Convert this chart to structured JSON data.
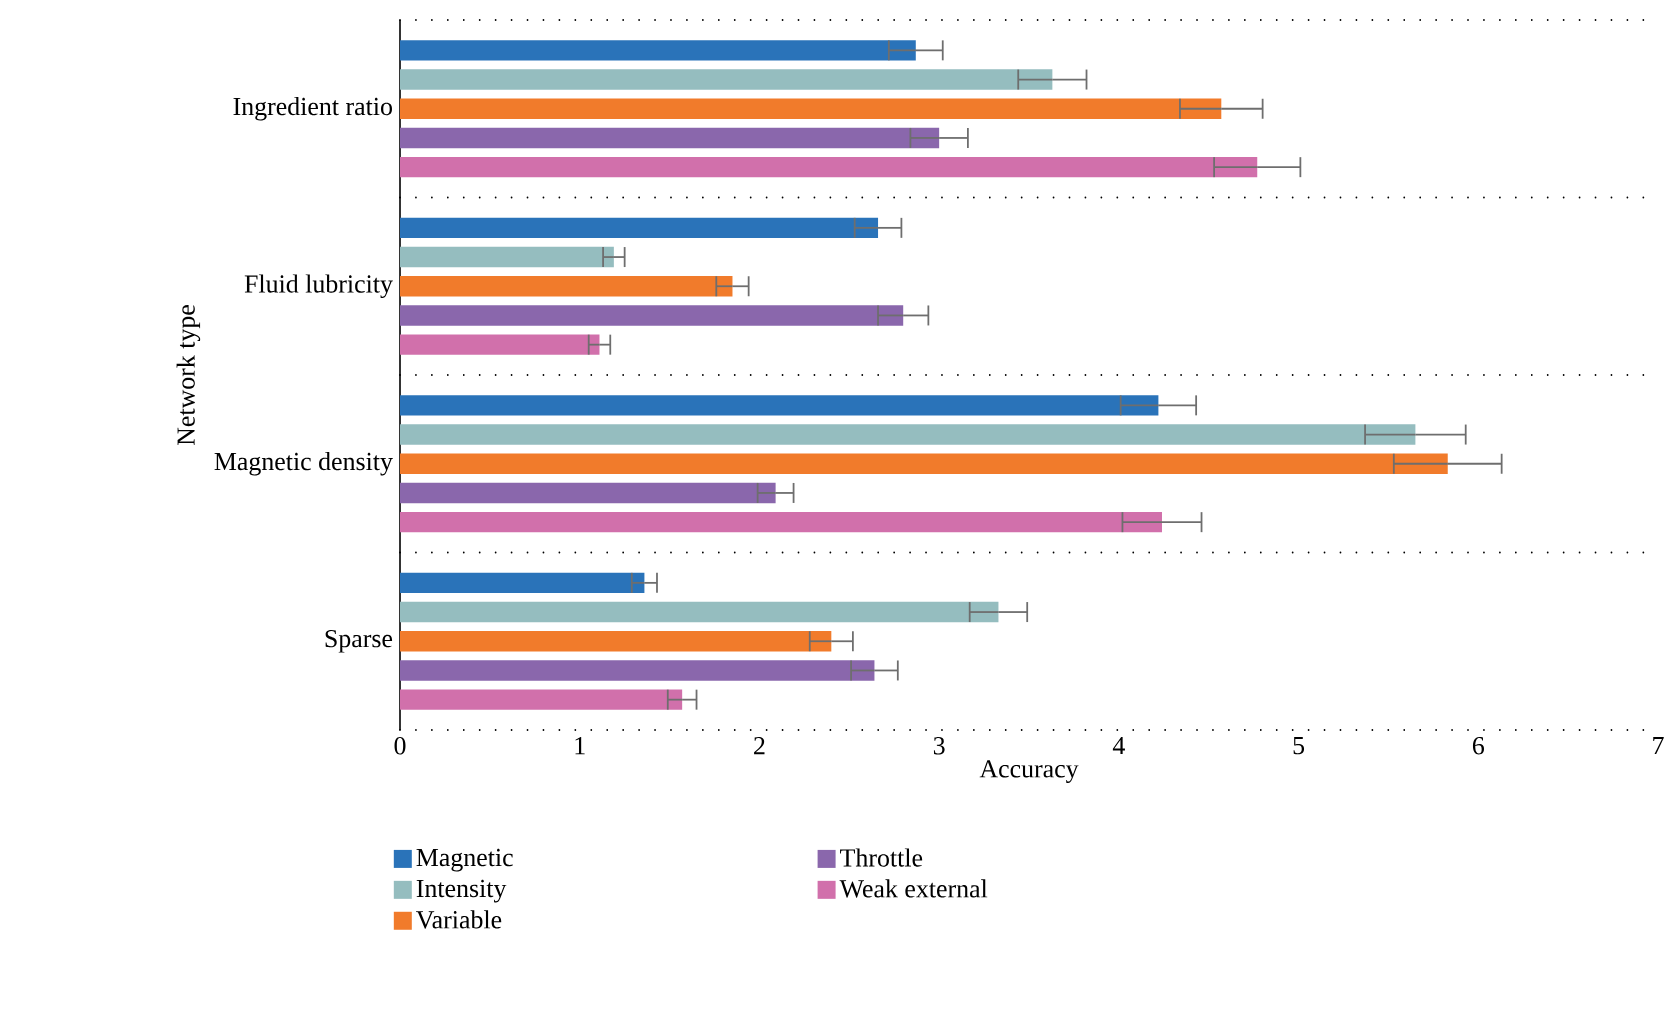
{
  "chart_data": {
    "type": "bar",
    "orientation": "horizontal",
    "xlabel": "Accuracy",
    "ylabel": "Network type",
    "categories": [
      "Ingredient ratio",
      "Fluid lubricity",
      "Magnetic density",
      "Sparse"
    ],
    "series": [
      {
        "name": "Magnetic",
        "color": "#2a73b9",
        "values": [
          2.87,
          2.66,
          4.22,
          1.36
        ],
        "errors": [
          0.15,
          0.13,
          0.21,
          0.07
        ]
      },
      {
        "name": "Intensity",
        "color": "#95bdbf",
        "values": [
          3.63,
          1.19,
          5.65,
          3.33
        ],
        "errors": [
          0.19,
          0.06,
          0.28,
          0.16
        ]
      },
      {
        "name": "Variable",
        "color": "#f17b2b",
        "values": [
          4.57,
          1.85,
          5.83,
          2.4
        ],
        "errors": [
          0.23,
          0.09,
          0.3,
          0.12
        ]
      },
      {
        "name": "Throttle",
        "color": "#8a67ac",
        "values": [
          3.0,
          2.8,
          2.09,
          2.64
        ],
        "errors": [
          0.16,
          0.14,
          0.1,
          0.13
        ]
      },
      {
        "name": "Weak external",
        "color": "#d170ab",
        "values": [
          4.77,
          1.11,
          4.24,
          1.57
        ],
        "errors": [
          0.24,
          0.06,
          0.22,
          0.08
        ]
      }
    ],
    "xlim": [
      0,
      7
    ],
    "xticks": [
      0,
      1,
      2,
      3,
      4,
      5,
      6,
      7
    ],
    "grid": "y",
    "legend": "bottom"
  }
}
